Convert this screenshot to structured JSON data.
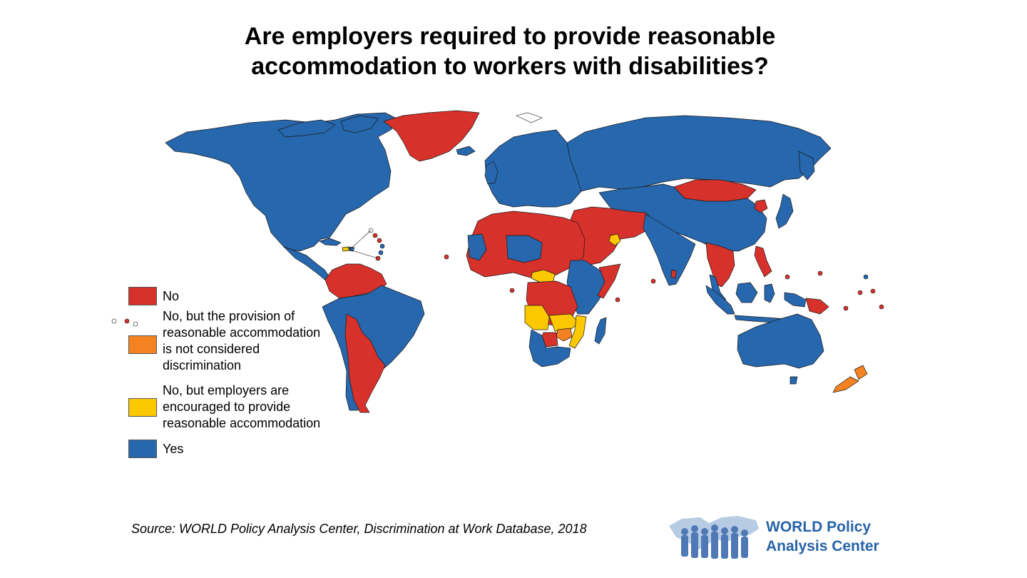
{
  "title": {
    "line1": "Are employers required to provide reasonable",
    "line2": "accommodation to workers with disabilities?"
  },
  "colors": {
    "no": "#d7312b",
    "no_not_discrimination": "#f58220",
    "no_encouraged": "#fcc800",
    "yes": "#2667ae",
    "ocean": "#ffffff",
    "border": "#1a1a1a"
  },
  "legend": {
    "no": {
      "line1": "No"
    },
    "no_not_discrimination": {
      "line1": "No, but the provision of",
      "line2": "reasonable accommodation",
      "line3": "is not considered",
      "line4": "discrimination"
    },
    "no_encouraged": {
      "line1": "No, but employers are",
      "line2": "encouraged to provide",
      "line3": "reasonable accommodation"
    },
    "yes": {
      "line1": "Yes"
    }
  },
  "source": "Source: WORLD Policy Analysis Center, Discrimination at Work Database, 2018",
  "logo": {
    "line1": "WORLD Policy",
    "line2": "Analysis Center"
  }
}
